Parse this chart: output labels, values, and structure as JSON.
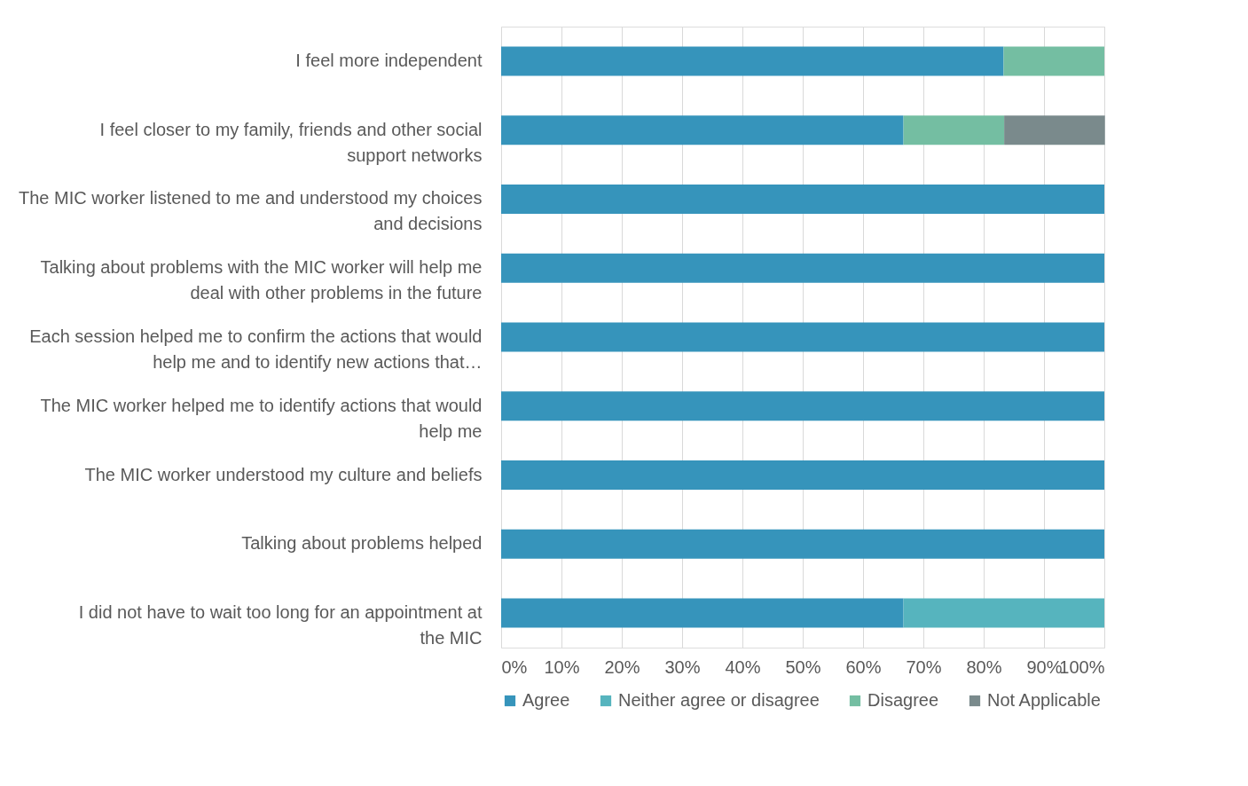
{
  "chart_data": {
    "type": "bar",
    "orientation": "horizontal",
    "stacked": true,
    "categories": [
      "I feel more independent",
      "I feel closer to my family, friends and other social support networks",
      "The MIC worker listened to me and understood my choices and decisions",
      "Talking about problems with the MIC worker will help me deal with other problems in the future",
      "Each session helped me to confirm the actions that would help me and to identify new actions that…",
      "The MIC worker helped me to identify actions that would help me",
      "The MIC worker understood my culture and beliefs",
      "Talking about problems helped",
      "I did not have to wait too long for an appointment at the MIC"
    ],
    "series": [
      {
        "name": "Agree",
        "color": "#3694bb",
        "values": [
          83.3,
          66.7,
          100,
          100,
          100,
          100,
          100,
          100,
          66.7
        ]
      },
      {
        "name": "Neither agree or disagree",
        "color": "#56b4be",
        "values": [
          0,
          0,
          0,
          0,
          0,
          0,
          0,
          0,
          33.3
        ]
      },
      {
        "name": "Disagree",
        "color": "#74bea2",
        "values": [
          16.7,
          16.7,
          0,
          0,
          0,
          0,
          0,
          0,
          0
        ]
      },
      {
        "name": "Not Applicable",
        "color": "#7a8a8c",
        "values": [
          0,
          16.7,
          0,
          0,
          0,
          0,
          0,
          0,
          0
        ]
      }
    ],
    "xlim": [
      0,
      100
    ],
    "xticks": [
      {
        "value": 0,
        "label": "0%"
      },
      {
        "value": 10,
        "label": "10%"
      },
      {
        "value": 20,
        "label": "20%"
      },
      {
        "value": 30,
        "label": "30%"
      },
      {
        "value": 40,
        "label": "40%"
      },
      {
        "value": 50,
        "label": "50%"
      },
      {
        "value": 60,
        "label": "60%"
      },
      {
        "value": 70,
        "label": "70%"
      },
      {
        "value": 80,
        "label": "80%"
      },
      {
        "value": 90,
        "label": "90%"
      },
      {
        "value": 100,
        "label": "100%"
      }
    ],
    "grid": "x",
    "legend": "bottom"
  }
}
